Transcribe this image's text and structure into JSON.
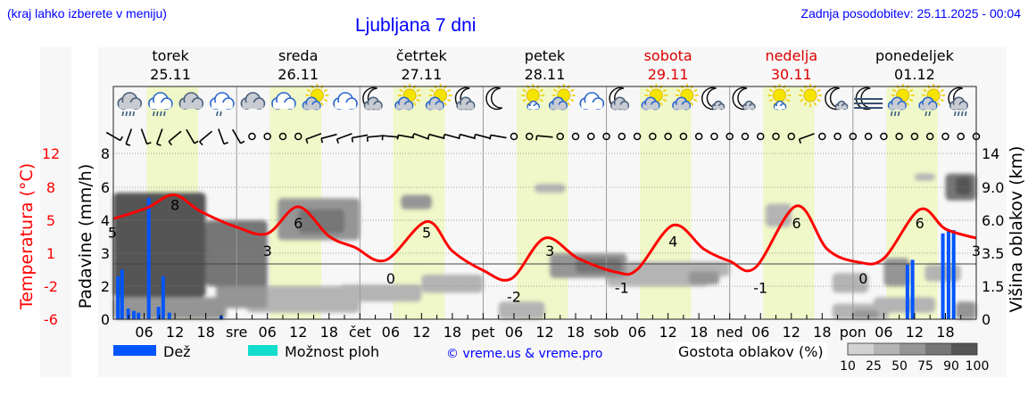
{
  "header": {
    "hint": "(kraj lahko izberete v meniju)",
    "title": "Ljubljana 7 dni",
    "updated": "Zadnja posodobitev: 25.11.2025 - 00:04"
  },
  "days": [
    {
      "name": "torek",
      "date": "25.11",
      "weekend": false
    },
    {
      "name": "sreda",
      "date": "26.11",
      "weekend": false
    },
    {
      "name": "četrtek",
      "date": "27.11",
      "weekend": false
    },
    {
      "name": "petek",
      "date": "28.11",
      "weekend": false
    },
    {
      "name": "sobota",
      "date": "29.11",
      "weekend": true
    },
    {
      "name": "nedelja",
      "date": "30.11",
      "weekend": true
    },
    {
      "name": "ponedeljek",
      "date": "01.12",
      "weekend": false
    }
  ],
  "colors": {
    "temperature": "#ff0000",
    "rain": "#0055ff",
    "showers": "#11ddcc",
    "daylight": "#f0f7c8",
    "weekend": "#dd0000",
    "link": "#0000ff"
  },
  "legend": {
    "rain": "Dež",
    "showers": "Možnost ploh",
    "copyright": "© vreme.us & vreme.pro",
    "cloud_density_title": "Gostota oblakov (%)",
    "cloud_density_levels": [
      "10",
      "25",
      "50",
      "75",
      "90",
      "100"
    ],
    "cloud_density_colors": [
      "#d2d2d2",
      "#b4b4b4",
      "#959595",
      "#767676",
      "#555555"
    ]
  },
  "chart_data": {
    "type": "meteogram",
    "x_tick_labels": [
      "06",
      "12",
      "18",
      "sre",
      "06",
      "12",
      "18",
      "čet",
      "06",
      "12",
      "18",
      "pet",
      "06",
      "12",
      "18",
      "sob",
      "06",
      "12",
      "18",
      "ned",
      "06",
      "12",
      "18",
      "pon",
      "06",
      "12",
      "18"
    ],
    "x_range_hours": [
      0,
      168
    ],
    "left_axis_temperature": {
      "label": "Temperatura (°C)",
      "ticks": [
        "12",
        "8",
        "5",
        "1",
        "-2",
        "-6"
      ],
      "range": [
        -6,
        12
      ]
    },
    "left_axis_precipitation": {
      "label": "Padavine (mm/h)",
      "ticks": [
        "8",
        "6",
        "4",
        "3",
        "2",
        "0"
      ]
    },
    "right_axis_cloud_height": {
      "label": "Višina oblakov (km)",
      "ticks": [
        "14",
        "9.0",
        "6.0",
        "3.5",
        "1.5",
        "0"
      ]
    },
    "temperature": {
      "hours": [
        0,
        6.6,
        11.8,
        17,
        24,
        30,
        36,
        42,
        47,
        53,
        61,
        66,
        72,
        77.5,
        84,
        90.5,
        98,
        102,
        109,
        115,
        120,
        125,
        133,
        139,
        145,
        150,
        157,
        162,
        168
      ],
      "values": [
        4.9,
        6.1,
        7.5,
        5.7,
        4.0,
        3.3,
        6.2,
        3.0,
        1.8,
        0.4,
        4.6,
        1.4,
        -0.7,
        -1.6,
        2.8,
        0.6,
        -0.9,
        -0.6,
        4.2,
        1.6,
        0.3,
        -0.4,
        6.3,
        1.6,
        0.2,
        0.6,
        5.9,
        3.8,
        2.8
      ]
    },
    "temperature_labels": [
      {
        "hour": 0,
        "text": "5"
      },
      {
        "hour": 12,
        "text": "8"
      },
      {
        "hour": 30,
        "text": "3"
      },
      {
        "hour": 36,
        "text": "6"
      },
      {
        "hour": 54,
        "text": "0"
      },
      {
        "hour": 61,
        "text": "5"
      },
      {
        "hour": 78,
        "text": "-2"
      },
      {
        "hour": 85,
        "text": "3"
      },
      {
        "hour": 99,
        "text": "-1"
      },
      {
        "hour": 109,
        "text": "4"
      },
      {
        "hour": 126,
        "text": "-1"
      },
      {
        "hour": 133,
        "text": "6"
      },
      {
        "hour": 146,
        "text": "0"
      },
      {
        "hour": 157,
        "text": "6"
      },
      {
        "hour": 168,
        "text": "3"
      }
    ],
    "temperature_label_values": [
      5,
      8,
      3,
      6,
      0,
      5,
      -2,
      3,
      -1,
      4,
      -1,
      6,
      0,
      6,
      3
    ],
    "precipitation": {
      "hours": [
        0.9,
        1.7,
        2.9,
        4,
        4.9,
        6.9,
        8.8,
        9.7,
        10.9,
        21,
        154.6,
        155.6,
        161.5,
        162.6,
        163.6
      ],
      "values": [
        2.3,
        2.5,
        0.65,
        0.5,
        0.4,
        5.35,
        0.75,
        2.3,
        0.4,
        0.2,
        2.65,
        2.8,
        3.6,
        3.7,
        3.7
      ]
    },
    "daylight_hours": [
      [
        6.5,
        16.5
      ],
      [
        30.5,
        40.5
      ],
      [
        54.5,
        64.5
      ],
      [
        78.5,
        88.5
      ],
      [
        102.5,
        112.5
      ],
      [
        126.5,
        136.5
      ],
      [
        150.5,
        160.5
      ]
    ],
    "cloud_cover": [
      {
        "h": [
          0,
          22
        ],
        "km": [
          0,
          1
        ],
        "pct": 50
      },
      {
        "h": [
          0,
          18
        ],
        "km": [
          1,
          8.5
        ],
        "pct": 90
      },
      {
        "h": [
          3,
          6
        ],
        "km": [
          3,
          6
        ],
        "pct": 25
      },
      {
        "h": [
          9,
          12
        ],
        "km": [
          2,
          4
        ],
        "pct": 50
      },
      {
        "h": [
          18,
          30
        ],
        "km": [
          1.5,
          6
        ],
        "pct": 75
      },
      {
        "h": [
          20,
          30
        ],
        "km": [
          0.5,
          2
        ],
        "pct": 50
      },
      {
        "h": [
          26,
          48
        ],
        "km": [
          0.3,
          1.5
        ],
        "pct": 25
      },
      {
        "h": [
          32,
          48
        ],
        "km": [
          4.5,
          8
        ],
        "pct": 50
      },
      {
        "h": [
          36,
          45
        ],
        "km": [
          5,
          7
        ],
        "pct": 75
      },
      {
        "h": [
          44,
          60
        ],
        "km": [
          0.8,
          1.6
        ],
        "pct": 25
      },
      {
        "h": [
          60,
          72
        ],
        "km": [
          1.2,
          2.2
        ],
        "pct": 25
      },
      {
        "h": [
          56,
          62
        ],
        "km": [
          7,
          8.3
        ],
        "pct": 50
      },
      {
        "h": [
          75,
          84
        ],
        "km": [
          0,
          0.8
        ],
        "pct": 25
      },
      {
        "h": [
          82,
          88
        ],
        "km": [
          8.5,
          9.5
        ],
        "pct": 25
      },
      {
        "h": [
          85,
          100
        ],
        "km": [
          2,
          3.5
        ],
        "pct": 50
      },
      {
        "h": [
          90,
          99
        ],
        "km": [
          2.3,
          3.2
        ],
        "pct": 75
      },
      {
        "h": [
          96,
          116
        ],
        "km": [
          1.5,
          2.3
        ],
        "pct": 25
      },
      {
        "h": [
          100,
          120
        ],
        "km": [
          2.1,
          3
        ],
        "pct": 25
      },
      {
        "h": [
          112,
          118
        ],
        "km": [
          1.6,
          2.4
        ],
        "pct": 50
      },
      {
        "h": [
          127,
          132
        ],
        "km": [
          5.5,
          7.5
        ],
        "pct": 25
      },
      {
        "h": [
          140,
          147
        ],
        "km": [
          1.2,
          2.3
        ],
        "pct": 25
      },
      {
        "h": [
          140,
          151
        ],
        "km": [
          0,
          0.7
        ],
        "pct": 25
      },
      {
        "h": [
          144,
          149
        ],
        "km": [
          0,
          0.4
        ],
        "pct": 50
      },
      {
        "h": [
          148,
          160
        ],
        "km": [
          0.3,
          1
        ],
        "pct": 25
      },
      {
        "h": [
          150,
          155
        ],
        "km": [
          1.5,
          3.2
        ],
        "pct": 50
      },
      {
        "h": [
          158,
          165
        ],
        "km": [
          1.8,
          2.8
        ],
        "pct": 25
      },
      {
        "h": [
          156,
          160
        ],
        "km": [
          10,
          11
        ],
        "pct": 25
      },
      {
        "h": [
          162,
          168
        ],
        "km": [
          7.8,
          11
        ],
        "pct": 75
      },
      {
        "h": [
          164,
          167
        ],
        "km": [
          8.3,
          10.5
        ],
        "pct": 90
      },
      {
        "h": [
          164,
          168
        ],
        "km": [
          0,
          0.8
        ],
        "pct": 50
      }
    ],
    "weather_icons": [
      "cloud-rain",
      "cloud-rain",
      "cloud",
      "cloud-light-rain",
      "cloud",
      "cloud",
      "sun-cloud",
      "cloud",
      "moon-cloud",
      "sun-cloud",
      "sun-cloud",
      "moon-cloud",
      "moon",
      "sun-small-cloud",
      "sun-cloud",
      "cloud",
      "moon-cloud",
      "sun-cloud",
      "sun-cloud",
      "moon-small-cloud",
      "moon-small-cloud",
      "sun-small-cloud",
      "sun",
      "moon-small-cloud",
      "moon-fog",
      "sun-cloud-rain",
      "sun-cloud-light-rain",
      "moon-cloud-rain"
    ],
    "wind_direction_deg": [
      300,
      20,
      340,
      20,
      50,
      330,
      50,
      340,
      330,
      null,
      null,
      null,
      null,
      70,
      75,
      70,
      80,
      85,
      95,
      100,
      110,
      105,
      105,
      105,
      105,
      100,
      null,
      null,
      95,
      null,
      null,
      null,
      null,
      null,
      null,
      null,
      null,
      null,
      null,
      null,
      null,
      null,
      null,
      null,
      null,
      70,
      null,
      null,
      null,
      null,
      null,
      null,
      null,
      null,
      null,
      null,
      null
    ]
  }
}
